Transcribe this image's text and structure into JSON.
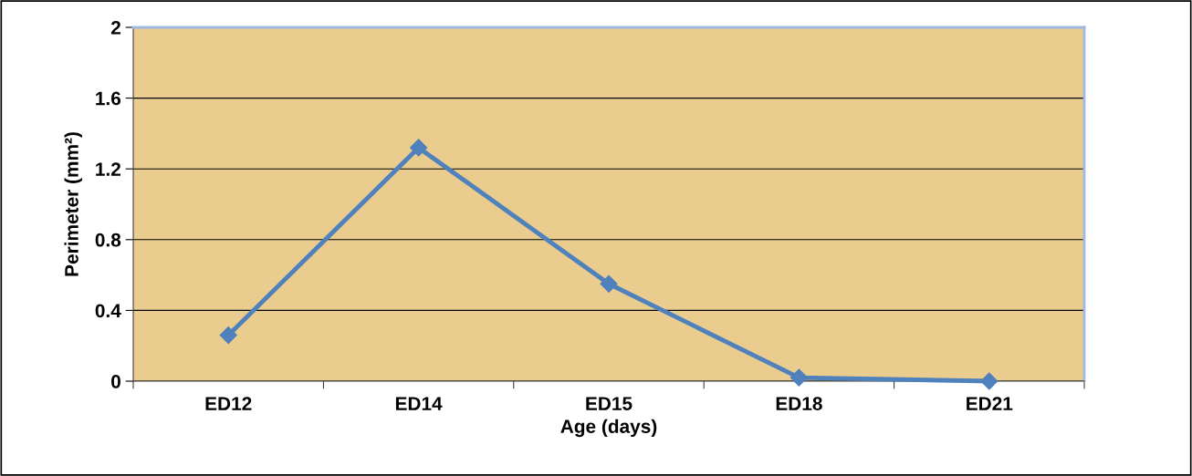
{
  "chart_data": {
    "type": "line",
    "xlabel": "Age (days)",
    "ylabel": "Perimeter (mm²)",
    "categories": [
      "ED12",
      "ED14",
      "ED15",
      "ED18",
      "ED21"
    ],
    "series": [
      {
        "color": "#4f81bd",
        "values": [
          0.26,
          1.32,
          0.55,
          0.02,
          0.0
        ]
      }
    ],
    "ylim": [
      0,
      2
    ],
    "yticks": [
      0,
      0.4,
      0.8,
      1.2,
      1.6,
      2
    ],
    "grid": "y",
    "marker": "diamond",
    "line_style": "solid"
  }
}
